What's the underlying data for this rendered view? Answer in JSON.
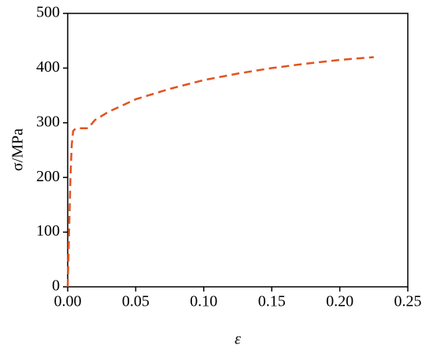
{
  "chart_data": {
    "type": "line",
    "x_label": "ε",
    "y_label": "σ/MPa",
    "x": [
      0,
      0.001,
      0.002,
      0.003,
      0.004,
      0.006,
      0.015,
      0.02,
      0.03,
      0.05,
      0.075,
      0.1,
      0.125,
      0.15,
      0.175,
      0.2,
      0.225
    ],
    "series": [
      {
        "color": "#e2541f",
        "values": [
          0,
          100,
          200,
          260,
          285,
          290,
          290,
          305,
          320,
          343,
          362,
          378,
          390,
          400,
          408,
          415,
          420
        ]
      }
    ],
    "xlim": [
      0,
      0.25
    ],
    "xticks": [
      {
        "value": 0,
        "label": "0.00"
      },
      {
        "value": 0.05,
        "label": "0.05"
      },
      {
        "value": 0.1,
        "label": "0.10"
      },
      {
        "value": 0.15,
        "label": "0.15"
      },
      {
        "value": 0.2,
        "label": "0.20"
      },
      {
        "value": 0.25,
        "label": "0.25"
      }
    ],
    "ylim": [
      0,
      500
    ],
    "yticks": [
      0,
      100,
      200,
      300,
      400,
      500
    ],
    "grid": false,
    "dashed": true
  }
}
